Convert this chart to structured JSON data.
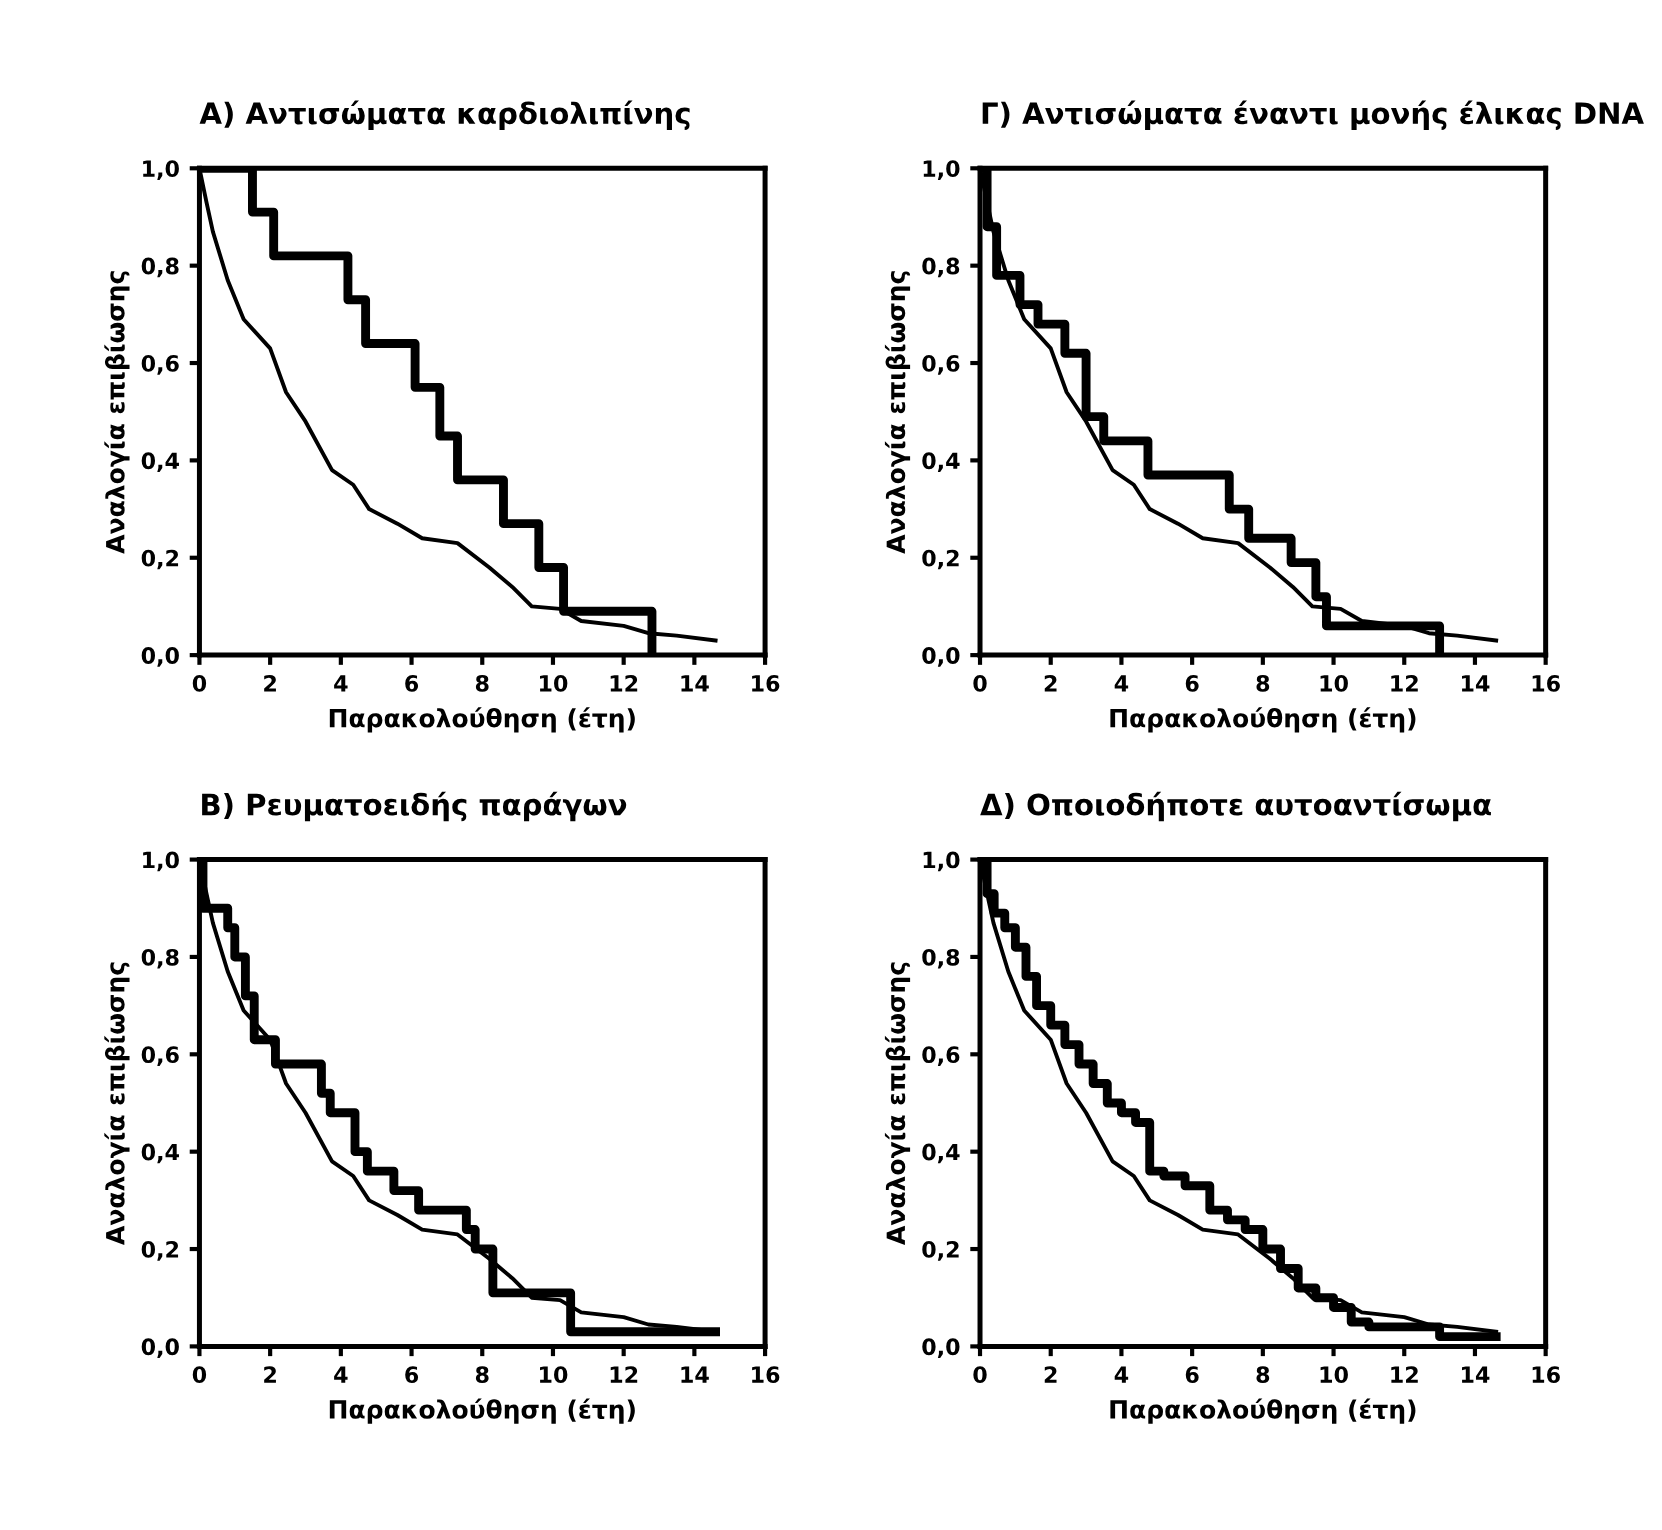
{
  "chart_data": [
    {
      "type": "step",
      "title": "A) Αντισώματα καρδιολιπίνης",
      "xlabel": "Παρακολούθηση (έτη)",
      "ylabel": "Αναλογία επιβίωσης",
      "xlim": [
        0,
        16
      ],
      "xticks": [
        0,
        2,
        4,
        6,
        8,
        10,
        12,
        14,
        16
      ],
      "ylim": [
        0,
        1
      ],
      "yticks": [
        {
          "value": 0,
          "label": "0,0"
        },
        {
          "value": 0.2,
          "label": "0,2"
        },
        {
          "value": 0.4,
          "label": "0,4"
        },
        {
          "value": 0.6,
          "label": "0,6"
        },
        {
          "value": 0.8,
          "label": "0,8"
        },
        {
          "value": 1,
          "label": "1,0"
        }
      ],
      "grid": false,
      "series": [
        {
          "type": "line",
          "color": "#000000",
          "x": [
            0,
            0.2,
            0.38,
            0.8,
            1.25,
            2.0,
            2.45,
            3.0,
            3.75,
            4.35,
            4.8,
            5.6,
            6.3,
            7.3,
            8.2,
            8.85,
            9.4,
            10.2,
            10.8,
            12,
            12.7,
            13.5,
            14.6
          ],
          "values": [
            1,
            0.93,
            0.87,
            0.77,
            0.69,
            0.63,
            0.54,
            0.48,
            0.38,
            0.35,
            0.3,
            0.27,
            0.24,
            0.23,
            0.18,
            0.14,
            0.1,
            0.095,
            0.07,
            0.06,
            0.045,
            0.04,
            0.03
          ]
        },
        {
          "color": "#000000",
          "x": [
            0,
            1.5,
            2.1,
            4.2,
            4.7,
            6.1,
            6.8,
            7.3,
            8.6,
            9.6,
            10.3,
            12.8
          ],
          "values": [
            1,
            0.91,
            0.82,
            0.73,
            0.64,
            0.55,
            0.45,
            0.36,
            0.27,
            0.18,
            0.09,
            0
          ]
        }
      ]
    },
    {
      "type": "step",
      "title": "Γ) Αντισώματα έναντι μονής έλικας DNA",
      "xlabel": "Παρακολούθηση (έτη)",
      "ylabel": "Αναλογία επιβίωσης",
      "xlim": [
        0,
        16
      ],
      "xticks": [
        0,
        2,
        4,
        6,
        8,
        10,
        12,
        14,
        16
      ],
      "ylim": [
        0,
        1
      ],
      "yticks": [
        {
          "value": 0,
          "label": "0,0"
        },
        {
          "value": 0.2,
          "label": "0,2"
        },
        {
          "value": 0.4,
          "label": "0,4"
        },
        {
          "value": 0.6,
          "label": "0,6"
        },
        {
          "value": 0.8,
          "label": "0,8"
        },
        {
          "value": 1,
          "label": "1,0"
        }
      ],
      "grid": false,
      "series": [
        {
          "type": "line",
          "color": "#000000",
          "x": [
            0,
            0.2,
            0.38,
            0.8,
            1.25,
            2.0,
            2.45,
            3.0,
            3.75,
            4.35,
            4.8,
            5.6,
            6.3,
            7.3,
            8.2,
            8.85,
            9.4,
            10.2,
            10.8,
            12,
            12.7,
            13.5,
            14.6
          ],
          "values": [
            1,
            0.93,
            0.87,
            0.77,
            0.69,
            0.63,
            0.54,
            0.48,
            0.38,
            0.35,
            0.3,
            0.27,
            0.24,
            0.23,
            0.18,
            0.14,
            0.1,
            0.095,
            0.07,
            0.06,
            0.045,
            0.04,
            0.03
          ]
        },
        {
          "color": "#000000",
          "x": [
            0,
            0.2,
            0.47,
            1.13,
            1.64,
            2.4,
            3.0,
            3.5,
            4.75,
            7.05,
            7.6,
            8.8,
            9.5,
            9.8,
            13.0
          ],
          "values": [
            1,
            0.88,
            0.78,
            0.72,
            0.68,
            0.62,
            0.49,
            0.44,
            0.37,
            0.3,
            0.24,
            0.19,
            0.12,
            0.06,
            0
          ]
        }
      ]
    },
    {
      "type": "step",
      "title": "B) Ρευματοειδής παράγων",
      "xlabel": "Παρακολούθηση (έτη)",
      "ylabel": "Αναλογία επιβίωσης",
      "xlim": [
        0,
        16
      ],
      "xticks": [
        0,
        2,
        4,
        6,
        8,
        10,
        12,
        14,
        16
      ],
      "ylim": [
        0,
        1
      ],
      "yticks": [
        {
          "value": 0,
          "label": "0,0"
        },
        {
          "value": 0.2,
          "label": "0,2"
        },
        {
          "value": 0.4,
          "label": "0,4"
        },
        {
          "value": 0.6,
          "label": "0,6"
        },
        {
          "value": 0.8,
          "label": "0,8"
        },
        {
          "value": 1,
          "label": "1,0"
        }
      ],
      "grid": false,
      "series": [
        {
          "type": "line",
          "color": "#000000",
          "x": [
            0,
            0.2,
            0.38,
            0.8,
            1.25,
            2.0,
            2.45,
            3.0,
            3.75,
            4.35,
            4.8,
            5.6,
            6.3,
            7.3,
            8.2,
            8.85,
            9.4,
            10.2,
            10.8,
            12,
            12.7,
            13.5,
            14.6
          ],
          "values": [
            1,
            0.93,
            0.87,
            0.77,
            0.69,
            0.63,
            0.54,
            0.48,
            0.38,
            0.35,
            0.3,
            0.27,
            0.24,
            0.23,
            0.18,
            0.14,
            0.1,
            0.095,
            0.07,
            0.06,
            0.045,
            0.04,
            0.03
          ]
        },
        {
          "color": "#000000",
          "x": [
            0,
            0.1,
            0.8,
            1.0,
            1.3,
            1.55,
            2.15,
            3.45,
            3.7,
            4.4,
            4.75,
            5.5,
            6.2,
            7.55,
            7.8,
            8.3,
            10.5,
            14.6
          ],
          "values": [
            1,
            0.9,
            0.86,
            0.8,
            0.72,
            0.63,
            0.58,
            0.52,
            0.48,
            0.4,
            0.36,
            0.32,
            0.28,
            0.24,
            0.2,
            0.11,
            0.03,
            0.03
          ]
        }
      ]
    },
    {
      "type": "step",
      "title": "Δ) Οποιοδήποτε αυτοαντίσωμα",
      "xlabel": "Παρακολούθηση (έτη)",
      "ylabel": "Αναλογία επιβίωσης",
      "xlim": [
        0,
        16
      ],
      "xticks": [
        0,
        2,
        4,
        6,
        8,
        10,
        12,
        14,
        16
      ],
      "ylim": [
        0,
        1
      ],
      "yticks": [
        {
          "value": 0,
          "label": "0,0"
        },
        {
          "value": 0.2,
          "label": "0,2"
        },
        {
          "value": 0.4,
          "label": "0,4"
        },
        {
          "value": 0.6,
          "label": "0,6"
        },
        {
          "value": 0.8,
          "label": "0,8"
        },
        {
          "value": 1,
          "label": "1,0"
        }
      ],
      "grid": false,
      "series": [
        {
          "type": "line",
          "color": "#000000",
          "x": [
            0,
            0.2,
            0.38,
            0.8,
            1.25,
            2.0,
            2.45,
            3.0,
            3.75,
            4.35,
            4.8,
            5.6,
            6.3,
            7.3,
            8.2,
            8.85,
            9.4,
            10.2,
            10.8,
            12,
            12.7,
            13.5,
            14.6
          ],
          "values": [
            1,
            0.93,
            0.87,
            0.77,
            0.69,
            0.63,
            0.54,
            0.48,
            0.38,
            0.35,
            0.3,
            0.27,
            0.24,
            0.23,
            0.18,
            0.14,
            0.1,
            0.095,
            0.07,
            0.06,
            0.045,
            0.04,
            0.03
          ]
        },
        {
          "color": "#000000",
          "x": [
            0,
            0.2,
            0.4,
            0.7,
            1.0,
            1.3,
            1.6,
            2.0,
            2.4,
            2.8,
            3.2,
            3.6,
            4.0,
            4.4,
            4.8,
            5.2,
            5.8,
            6.5,
            7.0,
            7.5,
            8.0,
            8.5,
            9.0,
            9.5,
            10.0,
            10.5,
            11,
            12,
            13,
            14.6
          ],
          "values": [
            1,
            0.93,
            0.89,
            0.86,
            0.82,
            0.76,
            0.7,
            0.66,
            0.62,
            0.58,
            0.54,
            0.5,
            0.48,
            0.46,
            0.36,
            0.35,
            0.33,
            0.28,
            0.26,
            0.24,
            0.2,
            0.16,
            0.12,
            0.1,
            0.08,
            0.05,
            0.04,
            0.04,
            0.02,
            0.02
          ]
        }
      ]
    }
  ]
}
